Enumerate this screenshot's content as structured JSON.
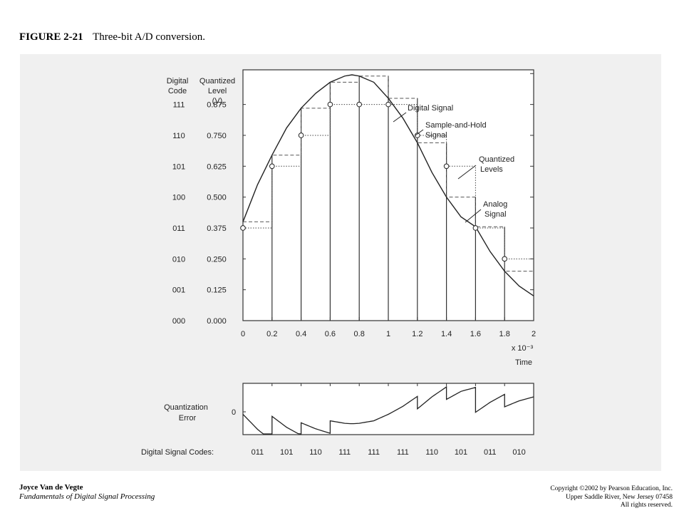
{
  "caption": {
    "number": "FIGURE 2-21",
    "title": "Three-bit A/D conversion."
  },
  "labels": {
    "digital_code_header": [
      "Digital",
      "Code"
    ],
    "quantized_header": [
      "Quantized",
      "Level",
      "(V)"
    ],
    "exponent": "x 10⁻³",
    "time": "Time",
    "quant_error": [
      "Quantization",
      "Error"
    ],
    "zero": "0",
    "digital_signal_codes_label": "Digital Signal Codes:"
  },
  "annotations": {
    "digital_signal": "Digital Signal",
    "sample_and_hold": [
      "Sample-and-Hold",
      "Signal"
    ],
    "quantized_levels": [
      "Quantized",
      "Levels"
    ],
    "analog_signal": [
      "Analog",
      "Signal"
    ]
  },
  "levels": [
    {
      "code": "111",
      "volts": "0.875",
      "value": 0.875
    },
    {
      "code": "110",
      "volts": "0.750",
      "value": 0.75
    },
    {
      "code": "101",
      "volts": "0.625",
      "value": 0.625
    },
    {
      "code": "100",
      "volts": "0.500",
      "value": 0.5
    },
    {
      "code": "011",
      "volts": "0.375",
      "value": 0.375
    },
    {
      "code": "010",
      "volts": "0.250",
      "value": 0.25
    },
    {
      "code": "001",
      "volts": "0.125",
      "value": 0.125
    },
    {
      "code": "000",
      "volts": "0.000",
      "value": 0.0
    }
  ],
  "x_ticks": [
    "0",
    "0.2",
    "0.4",
    "0.6",
    "0.8",
    "1",
    "1.2",
    "1.4",
    "1.6",
    "1.8",
    "2"
  ],
  "digital_signal_codes": [
    "011",
    "101",
    "110",
    "111",
    "111",
    "111",
    "110",
    "101",
    "011",
    "010"
  ],
  "chart_data": {
    "type": "line",
    "xlabel": "Time",
    "x_multiplier": "x 10⁻³",
    "xlim": [
      0,
      2
    ],
    "ylabel": "Quantized Level (V)",
    "ylim": [
      0,
      1.0
    ],
    "x": [
      0,
      0.2,
      0.4,
      0.6,
      0.8,
      1.0,
      1.2,
      1.4,
      1.6,
      1.8
    ],
    "series": [
      {
        "name": "Analog Signal",
        "x": [
          0,
          0.1,
          0.2,
          0.3,
          0.4,
          0.5,
          0.6,
          0.7,
          0.75,
          0.8,
          0.9,
          1.0,
          1.1,
          1.2,
          1.3,
          1.4,
          1.5,
          1.6,
          1.7,
          1.8,
          1.9,
          2.0
        ],
        "values": [
          0.4,
          0.55,
          0.67,
          0.78,
          0.86,
          0.92,
          0.965,
          0.99,
          0.995,
          0.99,
          0.965,
          0.9,
          0.82,
          0.72,
          0.6,
          0.5,
          0.42,
          0.38,
          0.28,
          0.2,
          0.14,
          0.1
        ]
      },
      {
        "name": "Sample-and-Hold Signal",
        "values": [
          0.4,
          0.67,
          0.86,
          0.965,
          0.99,
          0.9,
          0.72,
          0.5,
          0.38,
          0.2
        ]
      },
      {
        "name": "Digital Signal",
        "values": [
          0.375,
          0.625,
          0.75,
          0.875,
          0.875,
          0.875,
          0.75,
          0.625,
          0.375,
          0.25
        ]
      }
    ]
  }
}
